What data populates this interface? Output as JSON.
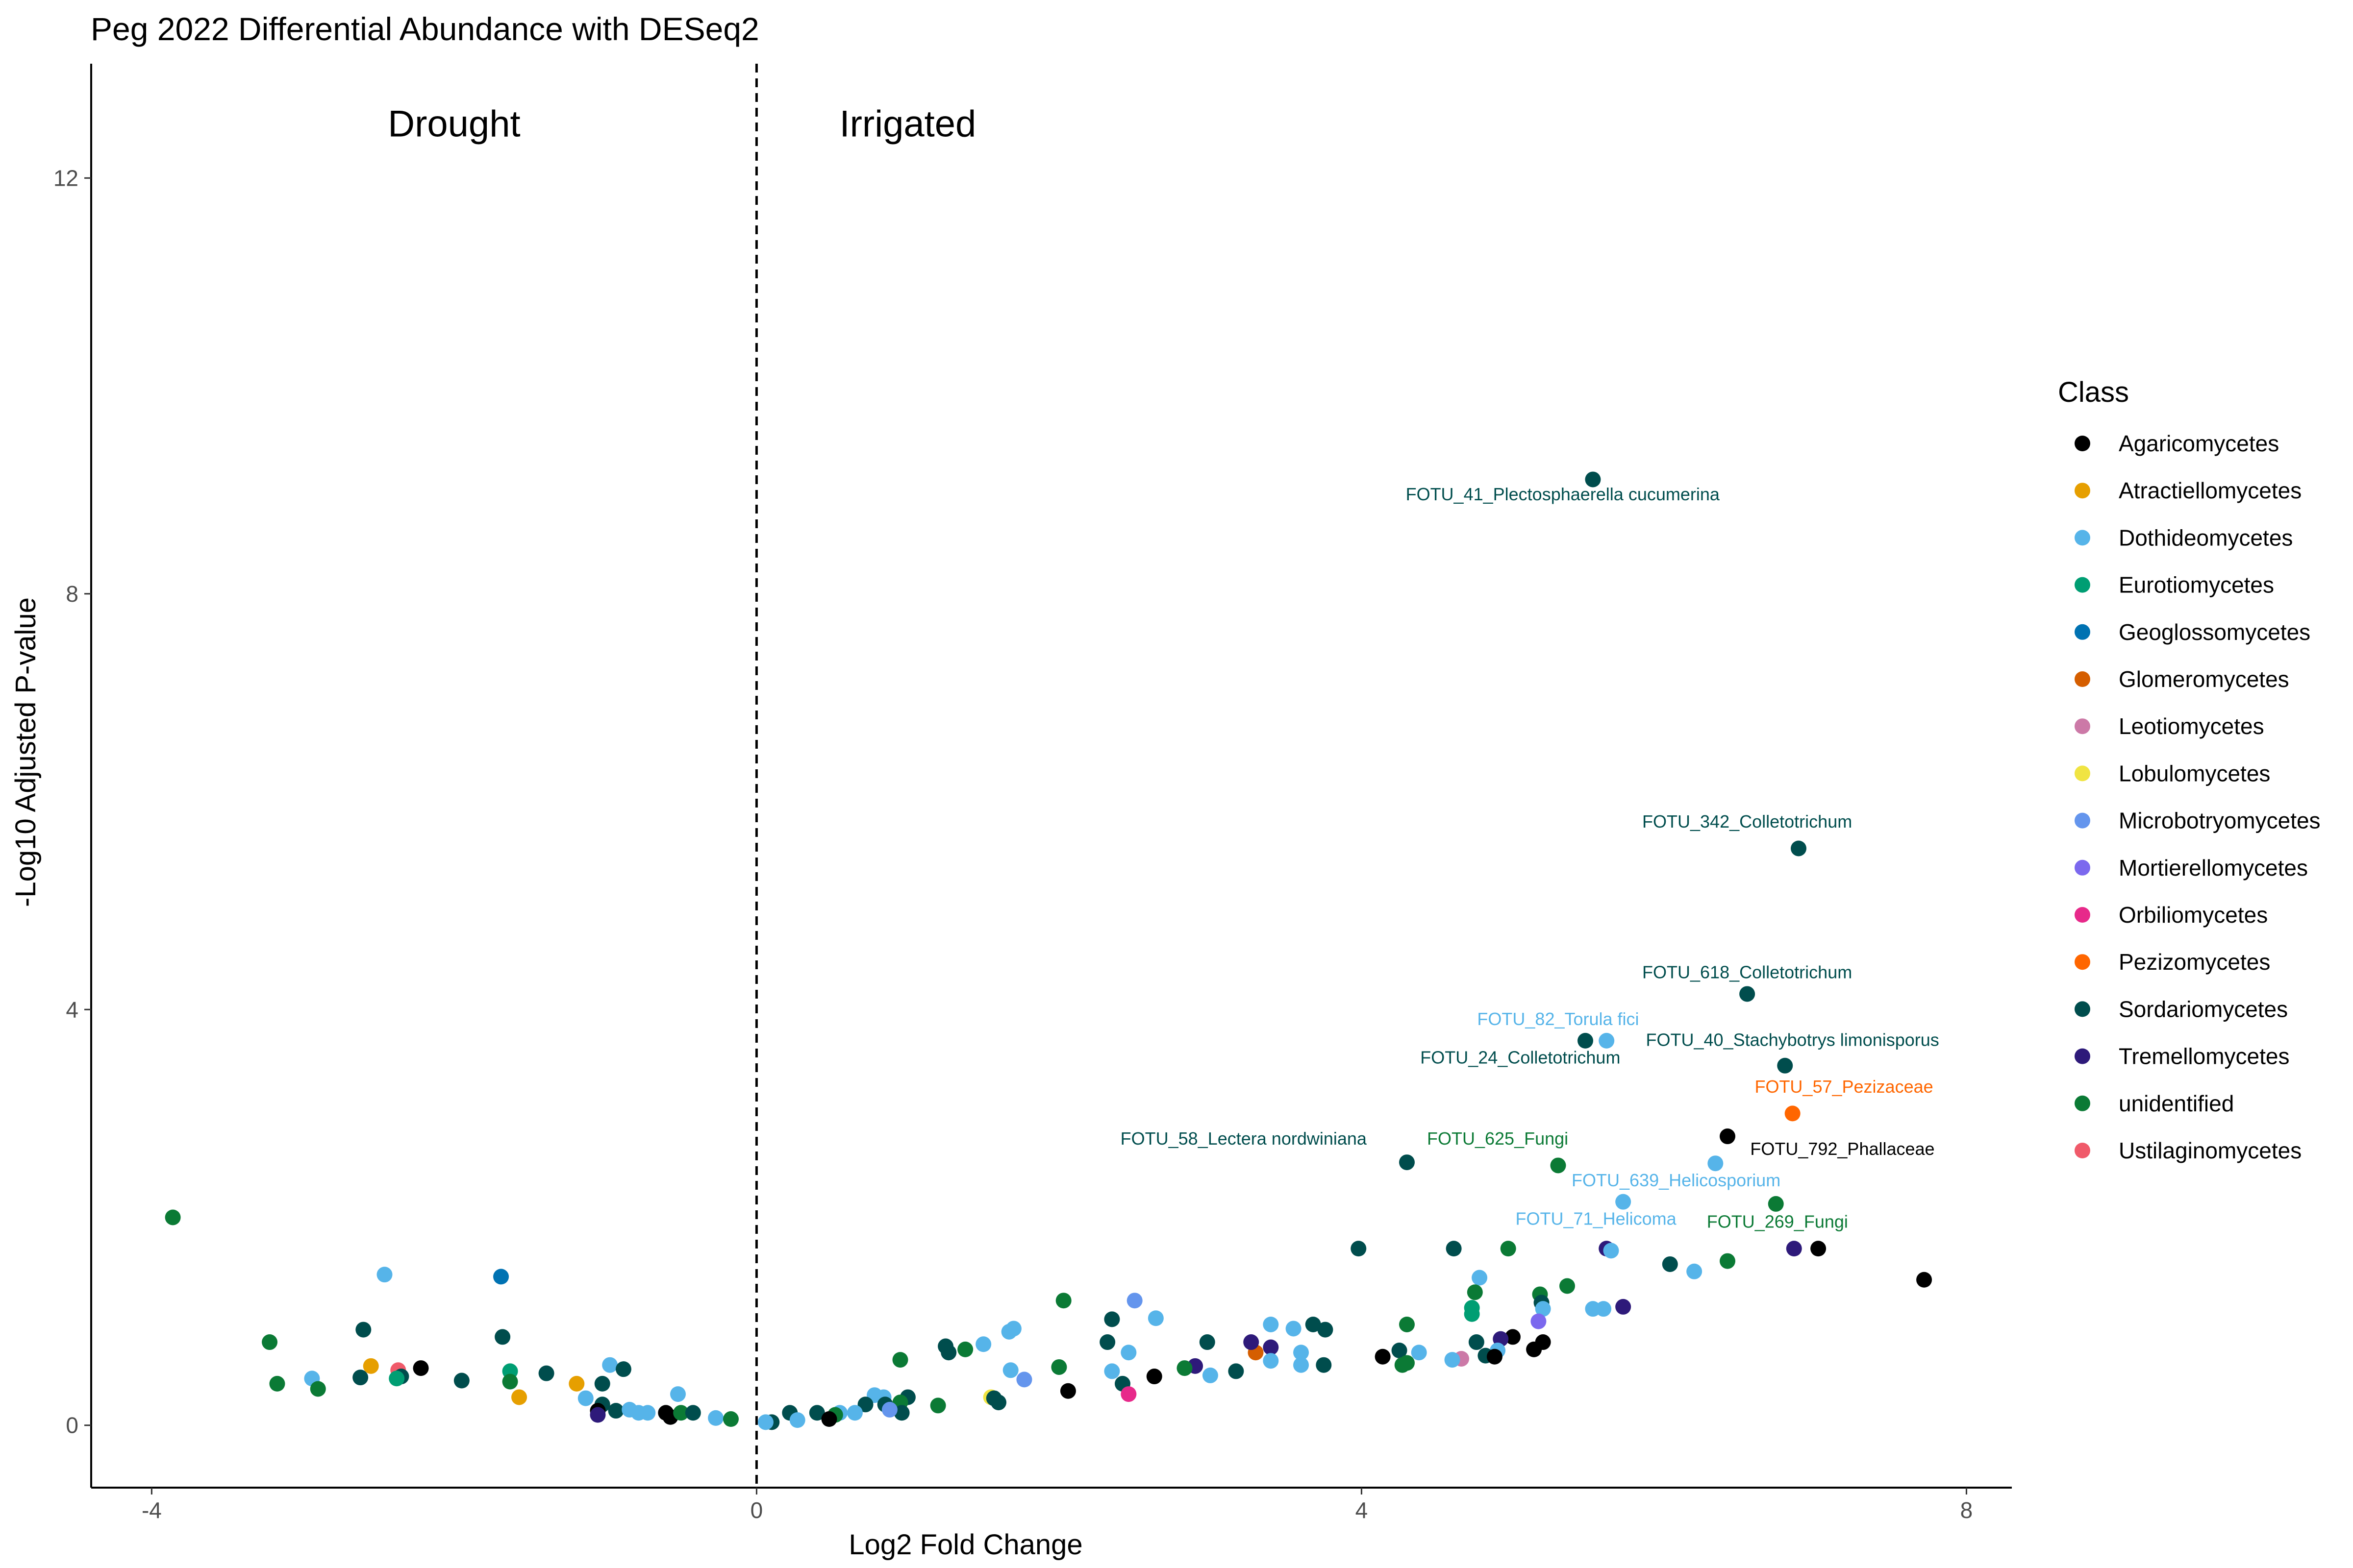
{
  "chart_data": {
    "type": "scatter",
    "title": "Peg 2022 Differential Abundance with DESeq2",
    "xlabel": "Log2 Fold Change",
    "ylabel": "-Log10 Adjusted P-value",
    "xlim": [
      -4.4,
      8.3
    ],
    "ylim": [
      -0.6,
      13.1
    ],
    "xticks": [
      -4,
      0,
      4,
      8
    ],
    "yticks": [
      0,
      4,
      8,
      12
    ],
    "vline": 0,
    "grid": false,
    "legend_position": "right",
    "region_labels": [
      {
        "text": "Drought",
        "x": -2.0,
        "y": 12.4
      },
      {
        "text": "Irrigated",
        "x": 1.0,
        "y": 12.4
      }
    ],
    "legend_title": "Class",
    "classes": [
      {
        "name": "Agaricomycetes",
        "color": "#000000"
      },
      {
        "name": "Atractiellomycetes",
        "color": "#E69F00"
      },
      {
        "name": "Dothideomycetes",
        "color": "#56B4E9"
      },
      {
        "name": "Eurotiomycetes",
        "color": "#009E73"
      },
      {
        "name": "Geoglossomycetes",
        "color": "#0072B2"
      },
      {
        "name": "Glomeromycetes",
        "color": "#D55E00"
      },
      {
        "name": "Leotiomycetes",
        "color": "#CC79A7"
      },
      {
        "name": "Lobulomycetes",
        "color": "#F0E442"
      },
      {
        "name": "Microbotryomycetes",
        "color": "#6495ED"
      },
      {
        "name": "Mortierellomycetes",
        "color": "#7B68EE"
      },
      {
        "name": "Orbiliomycetes",
        "color": "#E7298A"
      },
      {
        "name": "Pezizomycetes",
        "color": "#FF6600"
      },
      {
        "name": "Sordariomycetes",
        "color": "#004D4D"
      },
      {
        "name": "Tremellomycetes",
        "color": "#2E1A7A"
      },
      {
        "name": "unidentified",
        "color": "#0B7A35"
      },
      {
        "name": "Ustilaginomycetes",
        "color": "#F05A6A"
      }
    ],
    "points": [
      {
        "x": 5.53,
        "y": 9.1,
        "c": 12,
        "label": "FOTU_41_Plectosphaerella cucumerina",
        "lx": 5.33,
        "ly": 8.9
      },
      {
        "x": 6.89,
        "y": 5.55,
        "c": 12,
        "label": "FOTU_342_Colletotrichum",
        "lx": 6.55,
        "ly": 5.75
      },
      {
        "x": 6.55,
        "y": 4.15,
        "c": 12,
        "label": "FOTU_618_Colletotrichum",
        "lx": 6.55,
        "ly": 4.3
      },
      {
        "x": 5.48,
        "y": 3.7,
        "c": 12,
        "label": "FOTU_24_Colletotrichum",
        "lx": 5.05,
        "ly": 3.48
      },
      {
        "x": 5.62,
        "y": 3.7,
        "c": 2,
        "label": "FOTU_82_Torula fici",
        "lx": 5.3,
        "ly": 3.85
      },
      {
        "x": 6.8,
        "y": 3.46,
        "c": 12,
        "label": "FOTU_40_Stachybotrys limonisporus",
        "lx": 6.85,
        "ly": 3.65
      },
      {
        "x": 6.85,
        "y": 3.0,
        "c": 11,
        "label": "FOTU_57_Pezizaceae",
        "lx": 7.19,
        "ly": 3.2
      },
      {
        "x": 6.42,
        "y": 2.78,
        "c": 0,
        "label": "FOTU_792_Phallaceae",
        "lx": 7.18,
        "ly": 2.6
      },
      {
        "x": 4.3,
        "y": 2.53,
        "c": 12,
        "label": "FOTU_58_Lectera nordwiniana",
        "lx": 3.22,
        "ly": 2.7
      },
      {
        "x": 5.3,
        "y": 2.5,
        "c": 14,
        "label": "FOTU_625_Fungi",
        "lx": 4.9,
        "ly": 2.7
      },
      {
        "x": 6.34,
        "y": 2.52,
        "c": 2,
        "label": null
      },
      {
        "x": 5.73,
        "y": 2.15,
        "c": 2,
        "label": "FOTU_639_Helicosporium",
        "lx": 6.08,
        "ly": 2.3
      },
      {
        "x": 6.74,
        "y": 2.13,
        "c": 14,
        "label": "FOTU_269_Fungi",
        "lx": 6.75,
        "ly": 1.9
      },
      {
        "x": 6.86,
        "y": 1.7,
        "c": 13,
        "label": null
      },
      {
        "x": 5.62,
        "y": 1.7,
        "c": 13,
        "label": null
      },
      {
        "x": 5.65,
        "y": 1.68,
        "c": 2,
        "label": "FOTU_71_Helicoma",
        "lx": 5.55,
        "ly": 1.93
      },
      {
        "x": 7.02,
        "y": 1.7,
        "c": 0,
        "label": null
      },
      {
        "x": 7.72,
        "y": 1.4,
        "c": 0,
        "label": null
      },
      {
        "x": 6.42,
        "y": 1.58,
        "c": 14,
        "label": null
      },
      {
        "x": 6.04,
        "y": 1.55,
        "c": 12,
        "label": null
      },
      {
        "x": 6.2,
        "y": 1.48,
        "c": 2,
        "label": null
      },
      {
        "x": 5.36,
        "y": 1.34,
        "c": 14,
        "label": null
      },
      {
        "x": 5.18,
        "y": 1.26,
        "c": 14,
        "label": null
      },
      {
        "x": 5.19,
        "y": 1.18,
        "c": 12,
        "label": null
      },
      {
        "x": 5.2,
        "y": 1.12,
        "c": 2,
        "label": null
      },
      {
        "x": 5.53,
        "y": 1.12,
        "c": 2,
        "label": null
      },
      {
        "x": 5.6,
        "y": 1.12,
        "c": 2,
        "label": null
      },
      {
        "x": 5.73,
        "y": 1.14,
        "c": 13,
        "label": null
      },
      {
        "x": 4.78,
        "y": 1.42,
        "c": 2,
        "label": null
      },
      {
        "x": 4.75,
        "y": 1.28,
        "c": 14,
        "label": null
      },
      {
        "x": 4.73,
        "y": 1.13,
        "c": 3,
        "label": null
      },
      {
        "x": 4.73,
        "y": 1.07,
        "c": 3,
        "label": null
      },
      {
        "x": 4.97,
        "y": 1.7,
        "c": 14,
        "label": null
      },
      {
        "x": 4.61,
        "y": 1.7,
        "c": 12,
        "label": null
      },
      {
        "x": 3.98,
        "y": 1.7,
        "c": 12,
        "label": null
      },
      {
        "x": 5.17,
        "y": 1.0,
        "c": 9,
        "label": null
      },
      {
        "x": 5.0,
        "y": 0.85,
        "c": 0,
        "label": null
      },
      {
        "x": 5.2,
        "y": 0.8,
        "c": 0,
        "label": null
      },
      {
        "x": 5.14,
        "y": 0.73,
        "c": 0,
        "label": null
      },
      {
        "x": 4.92,
        "y": 0.83,
        "c": 13,
        "label": null
      },
      {
        "x": 4.9,
        "y": 0.72,
        "c": 2,
        "label": null
      },
      {
        "x": 4.76,
        "y": 0.8,
        "c": 12,
        "label": null
      },
      {
        "x": 4.82,
        "y": 0.67,
        "c": 12,
        "label": null
      },
      {
        "x": 4.88,
        "y": 0.66,
        "c": 0,
        "label": null
      },
      {
        "x": 4.66,
        "y": 0.64,
        "c": 6,
        "label": null
      },
      {
        "x": 4.6,
        "y": 0.63,
        "c": 2,
        "label": null
      },
      {
        "x": 4.38,
        "y": 0.7,
        "c": 2,
        "label": null
      },
      {
        "x": 4.25,
        "y": 0.72,
        "c": 12,
        "label": null
      },
      {
        "x": 4.14,
        "y": 0.66,
        "c": 0,
        "label": null
      },
      {
        "x": 4.3,
        "y": 0.6,
        "c": 14,
        "label": null
      },
      {
        "x": 4.27,
        "y": 0.58,
        "c": 14,
        "label": null
      },
      {
        "x": 4.3,
        "y": 0.97,
        "c": 14,
        "label": null
      },
      {
        "x": 3.76,
        "y": 0.92,
        "c": 12,
        "label": null
      },
      {
        "x": 3.68,
        "y": 0.97,
        "c": 12,
        "label": null
      },
      {
        "x": 3.55,
        "y": 0.93,
        "c": 2,
        "label": null
      },
      {
        "x": 3.4,
        "y": 0.97,
        "c": 2,
        "label": null
      },
      {
        "x": 3.6,
        "y": 0.7,
        "c": 2,
        "label": null
      },
      {
        "x": 3.6,
        "y": 0.58,
        "c": 2,
        "label": null
      },
      {
        "x": 3.75,
        "y": 0.58,
        "c": 12,
        "label": null
      },
      {
        "x": 3.4,
        "y": 0.75,
        "c": 13,
        "label": null
      },
      {
        "x": 3.4,
        "y": 0.62,
        "c": 2,
        "label": null
      },
      {
        "x": 3.3,
        "y": 0.7,
        "c": 5,
        "label": null
      },
      {
        "x": 3.27,
        "y": 0.8,
        "c": 13,
        "label": null
      },
      {
        "x": 3.17,
        "y": 0.52,
        "c": 12,
        "label": null
      },
      {
        "x": 3.0,
        "y": 0.48,
        "c": 2,
        "label": null
      },
      {
        "x": 2.98,
        "y": 0.8,
        "c": 12,
        "label": null
      },
      {
        "x": 2.9,
        "y": 0.57,
        "c": 13,
        "label": null
      },
      {
        "x": 2.83,
        "y": 0.55,
        "c": 14,
        "label": null
      },
      {
        "x": 2.64,
        "y": 1.03,
        "c": 2,
        "label": null
      },
      {
        "x": 2.5,
        "y": 1.2,
        "c": 8,
        "label": null
      },
      {
        "x": 2.35,
        "y": 1.02,
        "c": 12,
        "label": null
      },
      {
        "x": 2.32,
        "y": 0.8,
        "c": 12,
        "label": null
      },
      {
        "x": 2.46,
        "y": 0.7,
        "c": 2,
        "label": null
      },
      {
        "x": 2.35,
        "y": 0.52,
        "c": 2,
        "label": null
      },
      {
        "x": 2.63,
        "y": 0.47,
        "c": 0,
        "label": null
      },
      {
        "x": 2.42,
        "y": 0.4,
        "c": 12,
        "label": null
      },
      {
        "x": 2.46,
        "y": 0.3,
        "c": 10,
        "label": null
      },
      {
        "x": 2.03,
        "y": 1.2,
        "c": 14,
        "label": null
      },
      {
        "x": 2.0,
        "y": 0.56,
        "c": 14,
        "label": null
      },
      {
        "x": 2.06,
        "y": 0.33,
        "c": 0,
        "label": null
      },
      {
        "x": 1.67,
        "y": 0.9,
        "c": 2,
        "label": null
      },
      {
        "x": 1.7,
        "y": 0.93,
        "c": 2,
        "label": null
      },
      {
        "x": 1.5,
        "y": 0.78,
        "c": 2,
        "label": null
      },
      {
        "x": 1.38,
        "y": 0.73,
        "c": 14,
        "label": null
      },
      {
        "x": 1.25,
        "y": 0.76,
        "c": 12,
        "label": null
      },
      {
        "x": 1.27,
        "y": 0.7,
        "c": 12,
        "label": null
      },
      {
        "x": 1.68,
        "y": 0.53,
        "c": 2,
        "label": null
      },
      {
        "x": 1.77,
        "y": 0.44,
        "c": 8,
        "label": null
      },
      {
        "x": 1.55,
        "y": 0.27,
        "c": 7,
        "label": null
      },
      {
        "x": 1.57,
        "y": 0.26,
        "c": 12,
        "label": null
      },
      {
        "x": 1.6,
        "y": 0.22,
        "c": 12,
        "label": null
      },
      {
        "x": 1.2,
        "y": 0.19,
        "c": 14,
        "label": null
      },
      {
        "x": 0.95,
        "y": 0.63,
        "c": 14,
        "label": null
      },
      {
        "x": 1.0,
        "y": 0.27,
        "c": 12,
        "label": null
      },
      {
        "x": 0.95,
        "y": 0.22,
        "c": 14,
        "label": null
      },
      {
        "x": 0.96,
        "y": 0.12,
        "c": 12,
        "label": null
      },
      {
        "x": 0.78,
        "y": 0.29,
        "c": 2,
        "label": null
      },
      {
        "x": 0.84,
        "y": 0.27,
        "c": 2,
        "label": null
      },
      {
        "x": 0.85,
        "y": 0.2,
        "c": 12,
        "label": null
      },
      {
        "x": 0.72,
        "y": 0.2,
        "c": 12,
        "label": null
      },
      {
        "x": 0.88,
        "y": 0.15,
        "c": 8,
        "label": null
      },
      {
        "x": 0.65,
        "y": 0.12,
        "c": 2,
        "label": null
      },
      {
        "x": 0.55,
        "y": 0.12,
        "c": 2,
        "label": null
      },
      {
        "x": 0.52,
        "y": 0.1,
        "c": 14,
        "label": null
      },
      {
        "x": 0.4,
        "y": 0.12,
        "c": 12,
        "label": null
      },
      {
        "x": 0.48,
        "y": 0.06,
        "c": 0,
        "label": null
      },
      {
        "x": 0.22,
        "y": 0.12,
        "c": 12,
        "label": null
      },
      {
        "x": 0.27,
        "y": 0.05,
        "c": 2,
        "label": null
      },
      {
        "x": 0.1,
        "y": 0.03,
        "c": 12,
        "label": null
      },
      {
        "x": 0.06,
        "y": 0.03,
        "c": 2,
        "label": null
      },
      {
        "x": -3.86,
        "y": 2.0,
        "c": 14,
        "label": null
      },
      {
        "x": -3.22,
        "y": 0.8,
        "c": 14,
        "label": null
      },
      {
        "x": -3.17,
        "y": 0.4,
        "c": 14,
        "label": null
      },
      {
        "x": -2.94,
        "y": 0.45,
        "c": 2,
        "label": null
      },
      {
        "x": -2.9,
        "y": 0.35,
        "c": 14,
        "label": null
      },
      {
        "x": -2.6,
        "y": 0.92,
        "c": 12,
        "label": null
      },
      {
        "x": -2.62,
        "y": 0.46,
        "c": 12,
        "label": null
      },
      {
        "x": -2.46,
        "y": 1.45,
        "c": 2,
        "label": null
      },
      {
        "x": -2.55,
        "y": 0.57,
        "c": 1,
        "label": null
      },
      {
        "x": -2.37,
        "y": 0.53,
        "c": 15,
        "label": null
      },
      {
        "x": -2.35,
        "y": 0.47,
        "c": 12,
        "label": null
      },
      {
        "x": -2.38,
        "y": 0.45,
        "c": 3,
        "label": null
      },
      {
        "x": -2.22,
        "y": 0.55,
        "c": 0,
        "label": null
      },
      {
        "x": -1.95,
        "y": 0.43,
        "c": 12,
        "label": null
      },
      {
        "x": -1.69,
        "y": 1.43,
        "c": 4,
        "label": null
      },
      {
        "x": -1.68,
        "y": 0.85,
        "c": 12,
        "label": null
      },
      {
        "x": -1.63,
        "y": 0.52,
        "c": 3,
        "label": null
      },
      {
        "x": -1.63,
        "y": 0.42,
        "c": 14,
        "label": null
      },
      {
        "x": -1.57,
        "y": 0.27,
        "c": 1,
        "label": null
      },
      {
        "x": -1.39,
        "y": 0.5,
        "c": 12,
        "label": null
      },
      {
        "x": -1.19,
        "y": 0.4,
        "c": 1,
        "label": null
      },
      {
        "x": -1.13,
        "y": 0.26,
        "c": 2,
        "label": null
      },
      {
        "x": -1.02,
        "y": 0.4,
        "c": 12,
        "label": null
      },
      {
        "x": -0.97,
        "y": 0.58,
        "c": 2,
        "label": null
      },
      {
        "x": -0.88,
        "y": 0.54,
        "c": 12,
        "label": null
      },
      {
        "x": -1.02,
        "y": 0.2,
        "c": 12,
        "label": null
      },
      {
        "x": -1.05,
        "y": 0.14,
        "c": 0,
        "label": null
      },
      {
        "x": -0.93,
        "y": 0.14,
        "c": 12,
        "label": null
      },
      {
        "x": -1.05,
        "y": 0.1,
        "c": 13,
        "label": null
      },
      {
        "x": -0.84,
        "y": 0.15,
        "c": 2,
        "label": null
      },
      {
        "x": -0.78,
        "y": 0.12,
        "c": 2,
        "label": null
      },
      {
        "x": -0.72,
        "y": 0.12,
        "c": 2,
        "label": null
      },
      {
        "x": -0.6,
        "y": 0.12,
        "c": 0,
        "label": null
      },
      {
        "x": -0.57,
        "y": 0.08,
        "c": 0,
        "label": null
      },
      {
        "x": -0.52,
        "y": 0.3,
        "c": 2,
        "label": null
      },
      {
        "x": -0.5,
        "y": 0.12,
        "c": 14,
        "label": null
      },
      {
        "x": -0.42,
        "y": 0.12,
        "c": 12,
        "label": null
      },
      {
        "x": -0.27,
        "y": 0.07,
        "c": 2,
        "label": null
      },
      {
        "x": -0.17,
        "y": 0.06,
        "c": 14,
        "label": null
      }
    ]
  }
}
